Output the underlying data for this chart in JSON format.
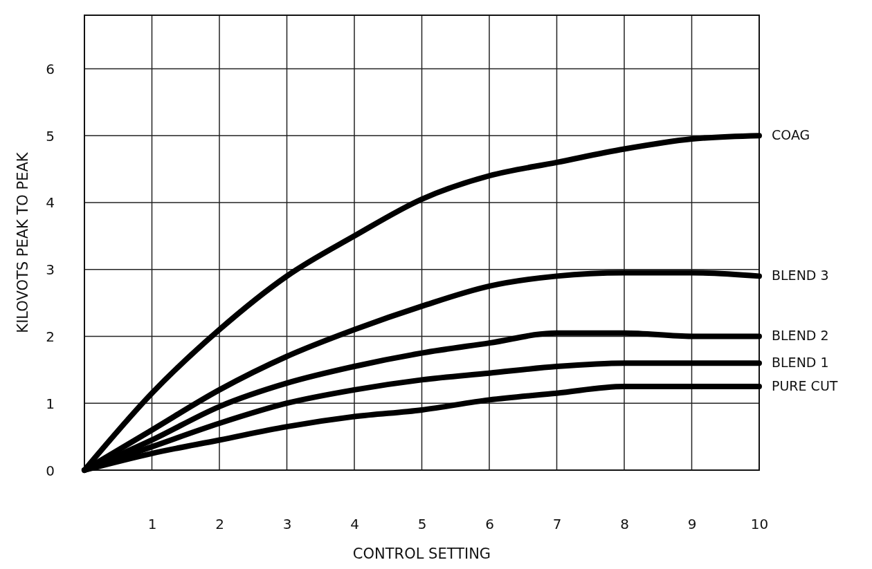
{
  "chart_data": {
    "type": "line",
    "xlabel": "CONTROL SETTING",
    "ylabel": "KILOVOTS PEAK TO PEAK",
    "x": [
      0,
      1,
      2,
      3,
      4,
      5,
      6,
      7,
      8,
      9,
      10
    ],
    "xlim": [
      0,
      10
    ],
    "xticks": [
      1,
      2,
      3,
      4,
      5,
      6,
      7,
      8,
      9,
      10
    ],
    "ylim": [
      0,
      6.8
    ],
    "yticks": [
      0,
      1,
      2,
      3,
      4,
      5,
      6
    ],
    "grid": true,
    "marker": "none",
    "line_style": "solid",
    "series": [
      {
        "name": "COAG",
        "color": "#000000",
        "values": [
          0,
          1.15,
          2.1,
          2.9,
          3.5,
          4.05,
          4.4,
          4.6,
          4.8,
          4.95,
          5.0
        ]
      },
      {
        "name": "BLEND 3",
        "color": "#000000",
        "values": [
          0,
          0.6,
          1.2,
          1.7,
          2.1,
          2.45,
          2.75,
          2.9,
          2.95,
          2.95,
          2.9
        ]
      },
      {
        "name": "BLEND 2",
        "color": "#000000",
        "values": [
          0,
          0.45,
          0.95,
          1.3,
          1.55,
          1.75,
          1.9,
          2.05,
          2.05,
          2.0,
          2.0
        ]
      },
      {
        "name": "BLEND 1",
        "color": "#000000",
        "values": [
          0,
          0.35,
          0.7,
          1.0,
          1.2,
          1.35,
          1.45,
          1.55,
          1.6,
          1.6,
          1.6
        ]
      },
      {
        "name": "PURE CUT",
        "color": "#000000",
        "values": [
          0,
          0.25,
          0.45,
          0.65,
          0.8,
          0.9,
          1.05,
          1.15,
          1.25,
          1.25,
          1.25
        ]
      }
    ]
  }
}
